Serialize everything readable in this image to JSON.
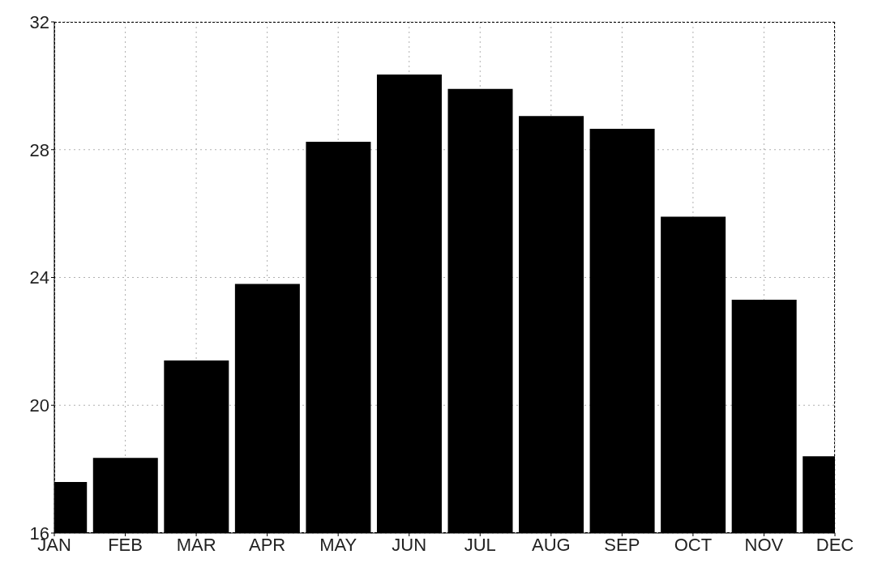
{
  "chart_data": {
    "type": "bar",
    "categories": [
      "JAN",
      "FEB",
      "MAR",
      "APR",
      "MAY",
      "JUN",
      "JUL",
      "AUG",
      "SEP",
      "OCT",
      "NOV",
      "DEC"
    ],
    "values": [
      17.6,
      18.35,
      21.4,
      23.8,
      28.25,
      30.35,
      29.9,
      29.05,
      28.65,
      25.9,
      23.3,
      18.4
    ],
    "color": "#000000",
    "ylim": [
      16,
      32
    ],
    "yticks": [
      16,
      20,
      24,
      28,
      32
    ],
    "grid": true,
    "legend": false
  }
}
